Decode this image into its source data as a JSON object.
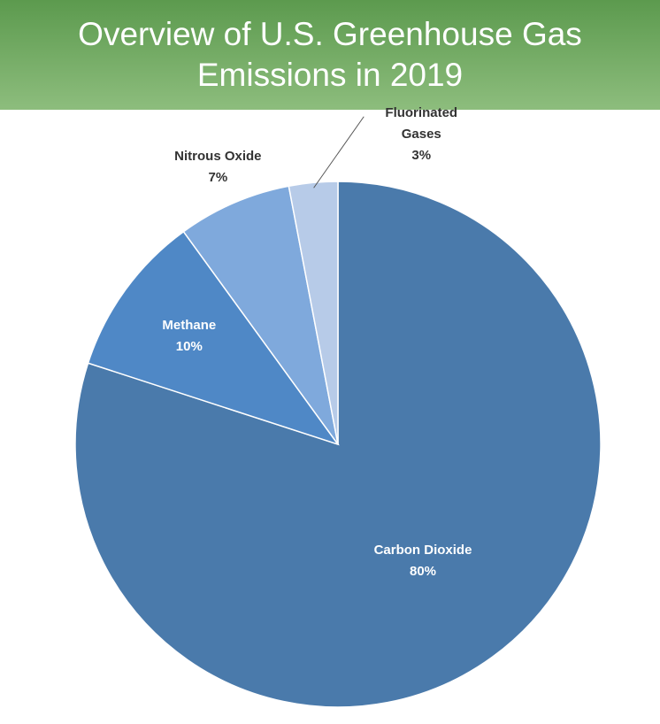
{
  "chart_data": {
    "type": "pie",
    "title": "Overview of U.S. Greenhouse Gas Emissions in 2019",
    "categories": [
      "Carbon Dioxide",
      "Methane",
      "Nitrous Oxide",
      "Fluorinated Gases"
    ],
    "values": [
      80,
      10,
      7,
      3
    ],
    "value_labels": [
      "80%",
      "10%",
      "7%",
      "3%"
    ],
    "colors": [
      "#4a7aab",
      "#4f88c6",
      "#7fa9dc",
      "#b7cbe8"
    ]
  }
}
